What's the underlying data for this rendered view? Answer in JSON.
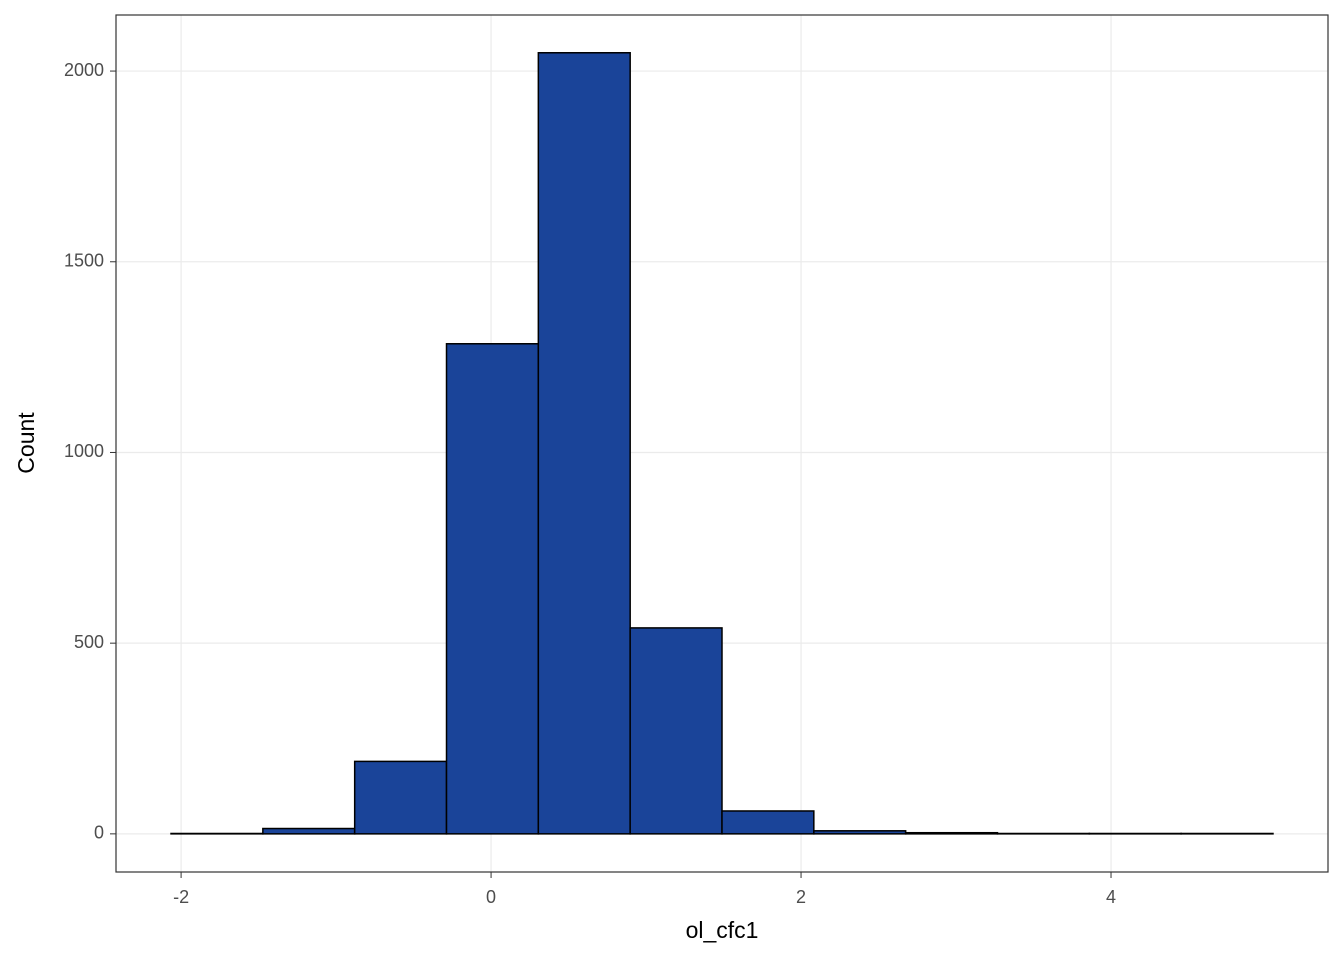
{
  "chart_data": {
    "type": "histogram",
    "x_label": "ol_cfc1",
    "y_label": "Count",
    "bins": [
      -2.065,
      -1.4725,
      -0.88,
      -0.2875,
      0.305,
      0.8975,
      1.49,
      2.0825,
      2.675,
      3.2675,
      3.86,
      4.4525,
      5.045
    ],
    "counts": [
      1,
      14,
      190,
      1285,
      2048,
      540,
      60,
      8,
      3,
      1,
      1,
      1
    ],
    "color": "#1a4499",
    "edge_color": "#000000",
    "xlim": [
      -2.42,
      5.4
    ],
    "ylim": [
      -100,
      2147
    ],
    "xticks": [
      -2,
      0,
      2,
      4
    ],
    "yticks": [
      0,
      500,
      1000,
      1500,
      2000
    ],
    "grid": true
  }
}
